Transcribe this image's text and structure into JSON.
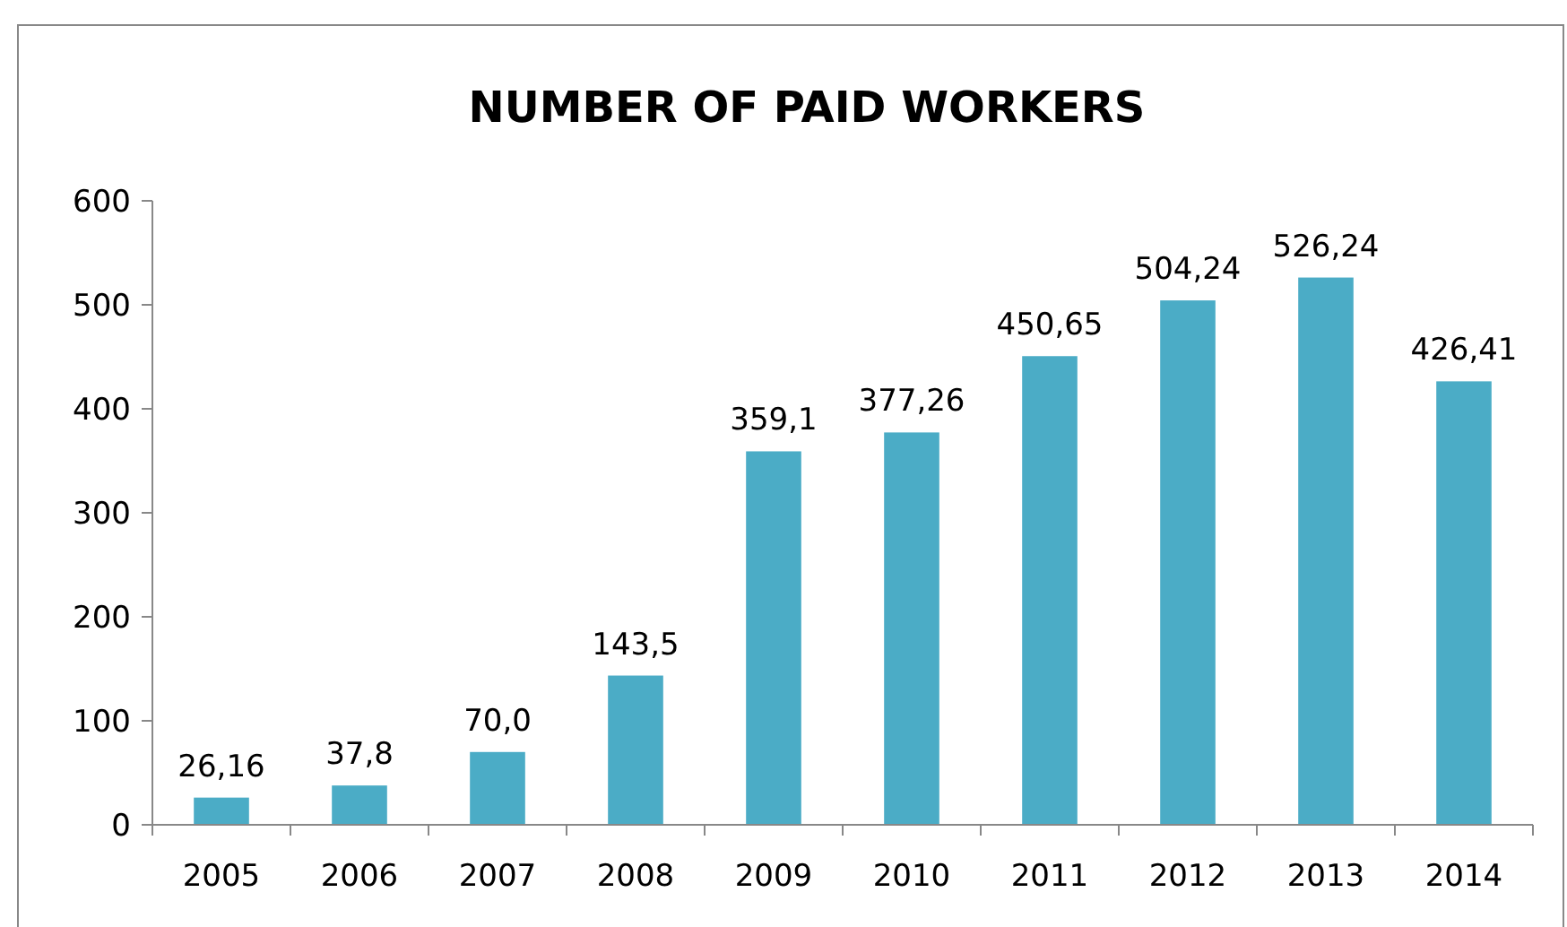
{
  "chart_data": {
    "type": "bar",
    "title": "NUMBER OF PAID WORKERS",
    "categories": [
      "2005",
      "2006",
      "2007",
      "2008",
      "2009",
      "2010",
      "2011",
      "2012",
      "2013",
      "2014"
    ],
    "values": [
      26.16,
      37.8,
      70.0,
      143.5,
      359.1,
      377.26,
      450.65,
      504.24,
      526.24,
      426.41
    ],
    "value_labels": [
      "26,16",
      "37,8",
      "70,0",
      "143,5",
      "359,1",
      "377,26",
      "450,65",
      "504,24",
      "526,24",
      "426,41"
    ],
    "color": "#4bacc6",
    "ylim": [
      0,
      600
    ],
    "yticks": [
      0,
      100,
      200,
      300,
      400,
      500,
      600
    ],
    "grid": false
  }
}
